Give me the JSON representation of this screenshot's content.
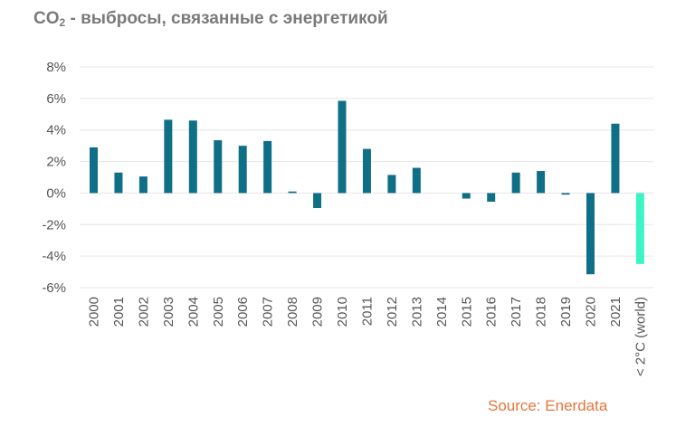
{
  "title": {
    "main": "CO",
    "sub": "2",
    "rest": " - выбросы, связанные с энергетикой"
  },
  "source": "Source: Enerdata",
  "colors": {
    "bar": "#0f6f86",
    "highlight": "#3df5c4",
    "grid": "#e6e6e6",
    "title": "#7a7a7a",
    "source": "#e8743b"
  },
  "chart_data": {
    "type": "bar",
    "categories": [
      "2000",
      "2001",
      "2002",
      "2003",
      "2004",
      "2005",
      "2006",
      "2007",
      "2008",
      "2009",
      "2010",
      "2011",
      "2012",
      "2013",
      "2014",
      "2015",
      "2016",
      "2017",
      "2018",
      "2019",
      "2020",
      "2021",
      "< 2°C (world)"
    ],
    "values": [
      2.9,
      1.3,
      1.05,
      4.65,
      4.6,
      3.35,
      3.0,
      3.3,
      0.1,
      -0.95,
      5.85,
      2.8,
      1.15,
      1.6,
      0.0,
      -0.35,
      -0.55,
      1.3,
      1.4,
      -0.1,
      -5.15,
      4.4,
      -4.5
    ],
    "highlight_index": 22,
    "ylim": [
      -6,
      8
    ],
    "yticks": [
      -6,
      -4,
      -2,
      0,
      2,
      4,
      6,
      8
    ],
    "ytick_format": "%",
    "grid": true,
    "xlabel": "",
    "ylabel": ""
  }
}
